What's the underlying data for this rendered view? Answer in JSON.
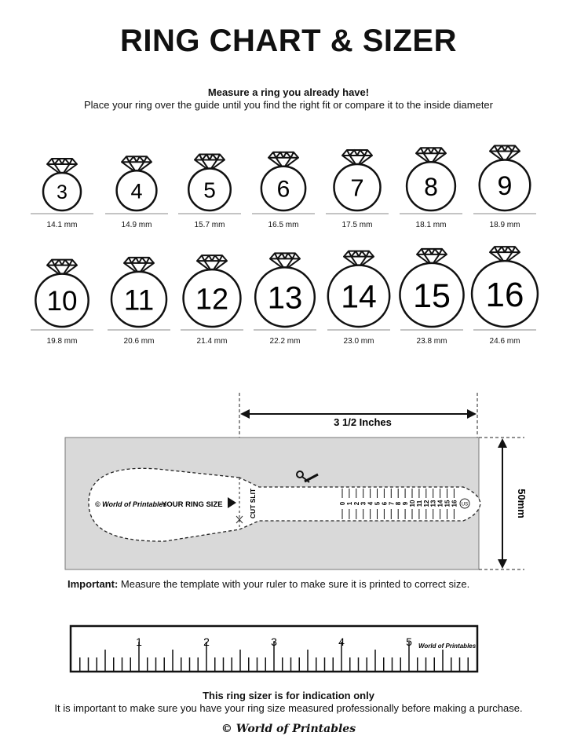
{
  "title": "RING CHART & SIZER",
  "subtitle_bold": "Measure a ring you already have!",
  "subtitle": "Place your ring over the guide until you find the right fit or compare it to the inside diameter",
  "rings": [
    {
      "size": "3",
      "diameter": "14.1 mm"
    },
    {
      "size": "4",
      "diameter": "14.9 mm"
    },
    {
      "size": "5",
      "diameter": "15.7 mm"
    },
    {
      "size": "6",
      "diameter": "16.5 mm"
    },
    {
      "size": "7",
      "diameter": "17.5 mm"
    },
    {
      "size": "8",
      "diameter": "18.1 mm"
    },
    {
      "size": "9",
      "diameter": "18.9 mm"
    },
    {
      "size": "10",
      "diameter": "19.8 mm"
    },
    {
      "size": "11",
      "diameter": "20.6 mm"
    },
    {
      "size": "12",
      "diameter": "21.4 mm"
    },
    {
      "size": "13",
      "diameter": "22.2 mm"
    },
    {
      "size": "14",
      "diameter": "23.0 mm"
    },
    {
      "size": "15",
      "diameter": "23.8 mm"
    },
    {
      "size": "16",
      "diameter": "24.6 mm"
    }
  ],
  "sizer": {
    "width_label": "3 1/2 Inches",
    "height_label": "50mm",
    "brand": "© World of Printables",
    "your_ring_size": "YOUR RING SIZE",
    "cut_slit": "CUT SLIT",
    "scale": [
      "0",
      "1",
      "2",
      "3",
      "4",
      "5",
      "6",
      "7",
      "8",
      "9",
      "10",
      "11",
      "12",
      "13",
      "14",
      "15",
      "16"
    ],
    "unit_badge": "US",
    "background_color": "#d9d9d9"
  },
  "important_label": "Important:",
  "important_text": " Measure the template with your ruler to make sure it is printed to correct size.",
  "ruler": {
    "labels": [
      "1",
      "2",
      "3",
      "4",
      "5"
    ],
    "brand": "World of Printables"
  },
  "indication_bold": "This ring sizer is for indication only",
  "indication_text": "It is important to make sure you have your ring size measured professionally before making a purchase.",
  "footer_brand": "© World of Printables"
}
